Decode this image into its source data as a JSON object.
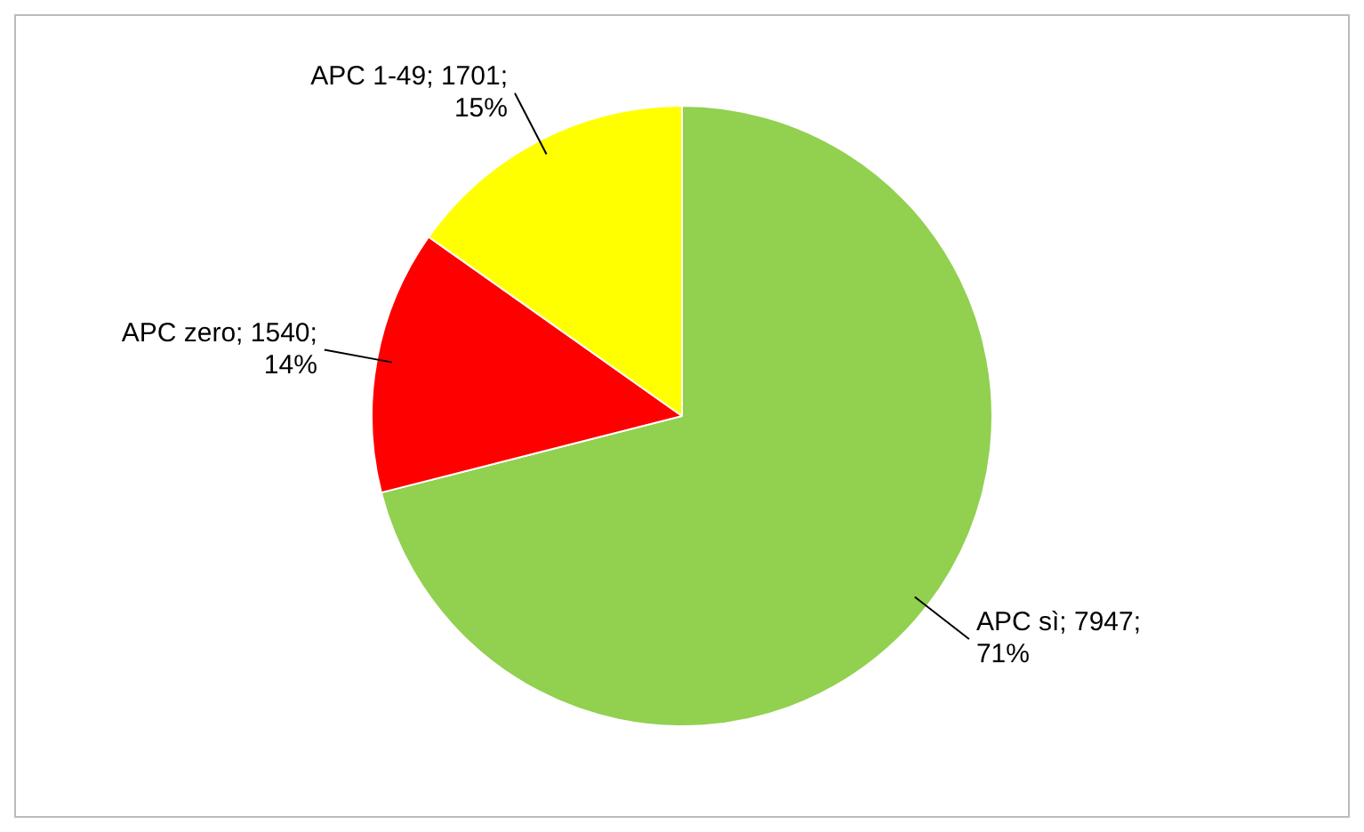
{
  "chart_data": {
    "type": "pie",
    "categories": [
      "APC sì",
      "APC zero",
      "APC 1-49"
    ],
    "values": [
      7947,
      1540,
      1701
    ],
    "colors": [
      "#92d050",
      "#ff0000",
      "#ffff00"
    ],
    "value_labels": [
      "7947; 71%",
      "1540; 14%",
      "1701; 15%"
    ]
  }
}
